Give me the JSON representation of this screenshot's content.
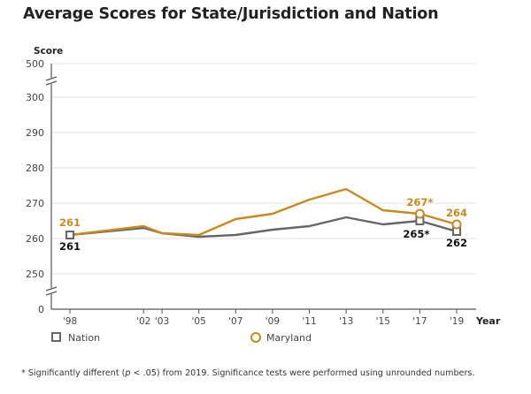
{
  "title": "Average Scores for State/Jurisdiction and Nation",
  "footnote": {
    "prefix": "* Significantly different (",
    "p": "p",
    "suffix": " < .05) from 2019. Significance tests were performed using unrounded numbers."
  },
  "chart_data": {
    "type": "line",
    "title": "Average Scores for State/Jurisdiction and Nation",
    "xlabel": "Year",
    "ylabel": "Score",
    "x": [
      1998,
      2002,
      2003,
      2005,
      2007,
      2009,
      2011,
      2013,
      2015,
      2017,
      2019
    ],
    "x_tick_labels": [
      "'98",
      "'02",
      "'03",
      "'05",
      "'07",
      "'09",
      "'11",
      "'13",
      "'15",
      "'17",
      "'19"
    ],
    "y_tick_labels": [
      "500",
      "300",
      "290",
      "280",
      "270",
      "260",
      "250",
      "0"
    ],
    "ylim": [
      250,
      300
    ],
    "axis_breaks": [
      "between 300 and 500",
      "between 0 and 250"
    ],
    "grid": true,
    "legend_position": "bottom",
    "series": [
      {
        "name": "Nation",
        "color": "#666666",
        "marker": "square",
        "values": [
          261,
          263,
          261.5,
          260.5,
          261,
          262.5,
          263.5,
          266,
          264,
          265,
          262
        ]
      },
      {
        "name": "Maryland",
        "color": "#c8891e",
        "marker": "circle",
        "values": [
          261,
          263.5,
          261.5,
          261,
          265.5,
          267,
          271,
          274,
          268,
          267,
          264
        ]
      }
    ],
    "data_labels": [
      {
        "series": "Maryland",
        "x": 1998,
        "text": "261"
      },
      {
        "series": "Nation",
        "x": 1998,
        "text": "261"
      },
      {
        "series": "Maryland",
        "x": 2017,
        "text": "267*"
      },
      {
        "series": "Nation",
        "x": 2017,
        "text": "265*"
      },
      {
        "series": "Maryland",
        "x": 2019,
        "text": "264"
      },
      {
        "series": "Nation",
        "x": 2019,
        "text": "262"
      }
    ]
  }
}
